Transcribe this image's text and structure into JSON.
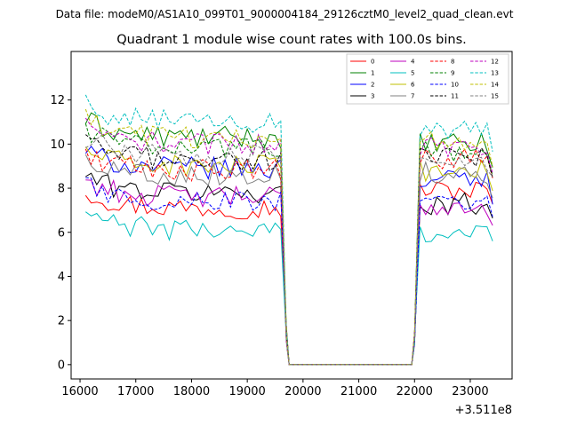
{
  "chart_data": {
    "type": "line",
    "suptitle": "Data file: modeM0/AS1A10_099T01_9000004184_29126cztM0_level2_quad_clean.evt",
    "title": "Quadrant 1 module wise count rates with 100.0s bins.",
    "xlabel": "",
    "ylabel": "",
    "x_offset_label": "+3.511e8",
    "xlim": [
      15840,
      23750
    ],
    "ylim": [
      -0.65,
      14.2
    ],
    "x_ticks": [
      16000,
      17000,
      18000,
      19000,
      20000,
      21000,
      22000,
      23000
    ],
    "y_ticks": [
      0,
      2,
      4,
      6,
      8,
      10,
      12
    ],
    "legend_position": "top-right",
    "legend_columns": 4,
    "x_start": 16100,
    "bin_width": 100,
    "gap": {
      "from": 19750,
      "to": 21950
    },
    "end": 23450,
    "series": [
      {
        "name": "0",
        "color": "#ff0000",
        "dash": false,
        "level1": 7.1,
        "level2": 7.9
      },
      {
        "name": "1",
        "color": "#008000",
        "dash": false,
        "level1": 10.3,
        "level2": 10.0
      },
      {
        "name": "2",
        "color": "#0000ff",
        "dash": false,
        "level1": 8.9,
        "level2": 8.4
      },
      {
        "name": "3",
        "color": "#000000",
        "dash": false,
        "level1": 7.8,
        "level2": 7.3
      },
      {
        "name": "4",
        "color": "#bf00bf",
        "dash": false,
        "level1": 7.6,
        "level2": 7.2
      },
      {
        "name": "5",
        "color": "#00bfbf",
        "dash": false,
        "level1": 6.1,
        "level2": 6.0
      },
      {
        "name": "6",
        "color": "#bfbf00",
        "dash": false,
        "level1": 9.0,
        "level2": 8.8
      },
      {
        "name": "7",
        "color": "#808080",
        "dash": false,
        "level1": 8.6,
        "level2": 8.7
      },
      {
        "name": "8",
        "color": "#ff0000",
        "dash": true,
        "level1": 8.8,
        "level2": 9.3
      },
      {
        "name": "9",
        "color": "#008000",
        "dash": true,
        "level1": 9.9,
        "level2": 9.7
      },
      {
        "name": "10",
        "color": "#0000ff",
        "dash": true,
        "level1": 7.4,
        "level2": 7.2
      },
      {
        "name": "11",
        "color": "#000000",
        "dash": true,
        "level1": 9.3,
        "level2": 9.4
      },
      {
        "name": "12",
        "color": "#bf00bf",
        "dash": true,
        "level1": 10.0,
        "level2": 9.9
      },
      {
        "name": "13",
        "color": "#00bfbf",
        "dash": true,
        "level1": 11.0,
        "level2": 10.6
      },
      {
        "name": "14",
        "color": "#bfbf00",
        "dash": true,
        "level1": 10.3,
        "level2": 10.1
      },
      {
        "name": "15",
        "color": "#808080",
        "dash": true,
        "level1": 9.5,
        "level2": 9.2
      }
    ]
  }
}
